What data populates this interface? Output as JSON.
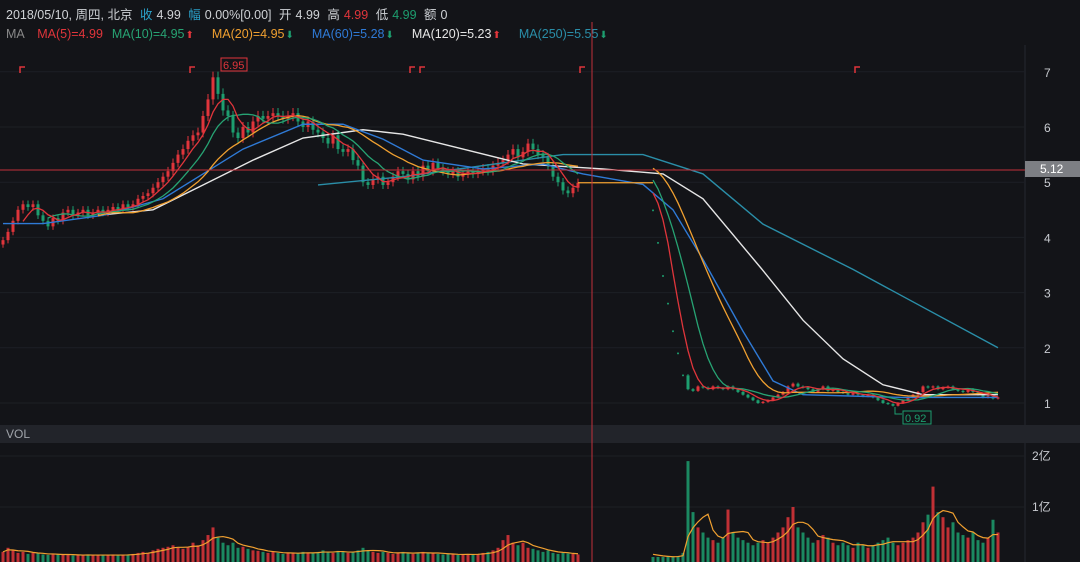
{
  "header": {
    "date": "2018/05/10, 周四, 北京",
    "close_label": "收",
    "close": "4.99",
    "change_label": "幅",
    "change": "0.00%[0.00]",
    "open_label": "开",
    "open": "4.99",
    "high_label": "高",
    "high": "4.99",
    "low_label": "低",
    "low": "4.99",
    "amount_label": "额",
    "amount": "0"
  },
  "ma_legend": {
    "title": "MA",
    "items": [
      {
        "label": "MA(5)=4.99",
        "color": "#e0353b",
        "trend": ""
      },
      {
        "label": "MA(10)=4.95",
        "color": "#27a373",
        "trend": "up"
      },
      {
        "label": "MA(20)=4.95",
        "color": "#f0a030",
        "trend": "down"
      },
      {
        "label": "MA(60)=5.28",
        "color": "#2f7ad6",
        "trend": "down"
      },
      {
        "label": "MA(120)=5.23",
        "color": "#e6e6e6",
        "trend": "up"
      },
      {
        "label": "MA(250)=5.55",
        "color": "#2a8ea8",
        "trend": "down"
      }
    ]
  },
  "colors": {
    "up": "#e0353b",
    "down": "#1d9e6f",
    "background": "#131418",
    "crosshair": "#c0303a"
  },
  "chart_data": [
    {
      "type": "candlestick",
      "title": "",
      "ylim": [
        0.7,
        7.4
      ],
      "yticks": [
        "1",
        "2",
        "3",
        "4",
        "5",
        "6",
        "7"
      ],
      "grid": true,
      "crosshair_value": "5.12",
      "max_label": "6.95",
      "min_label": "0.92",
      "close": [
        3.95,
        4.1,
        4.3,
        4.5,
        4.6,
        4.55,
        4.6,
        4.4,
        4.3,
        4.2,
        4.35,
        4.3,
        4.45,
        4.5,
        4.4,
        4.45,
        4.5,
        4.4,
        4.45,
        4.5,
        4.45,
        4.5,
        4.55,
        4.5,
        4.6,
        4.55,
        4.6,
        4.7,
        4.75,
        4.8,
        4.9,
        5.0,
        5.1,
        5.2,
        5.35,
        5.5,
        5.6,
        5.75,
        5.85,
        5.9,
        6.2,
        6.5,
        6.9,
        6.6,
        6.3,
        6.2,
        5.9,
        5.8,
        6.0,
        5.9,
        6.1,
        6.2,
        6.15,
        6.2,
        6.25,
        6.2,
        6.15,
        6.2,
        6.25,
        6.1,
        6.0,
        6.1,
        5.95,
        5.9,
        5.8,
        5.7,
        5.85,
        5.6,
        5.55,
        5.6,
        5.4,
        5.3,
        5.0,
        4.95,
        5.05,
        5.1,
        4.95,
        5.0,
        5.1,
        5.2,
        5.15,
        5.05,
        5.2,
        5.1,
        5.3,
        5.2,
        5.35,
        5.25,
        5.2,
        5.15,
        5.2,
        5.1,
        5.15,
        5.2,
        5.15,
        5.2,
        5.25,
        5.2,
        5.3,
        5.35,
        5.4,
        5.5,
        5.6,
        5.45,
        5.55,
        5.7,
        5.6,
        5.5,
        5.45,
        5.3,
        5.1,
        5.0,
        4.85,
        4.8,
        4.9,
        4.99,
        null,
        null,
        null,
        null,
        null,
        null,
        null,
        null,
        null,
        null,
        null,
        null,
        null,
        null,
        4.49,
        3.9,
        3.3,
        2.8,
        2.3,
        1.9,
        1.5,
        1.25,
        1.22,
        1.3,
        1.28,
        1.25,
        1.3,
        1.27,
        1.25,
        1.3,
        1.25,
        1.2,
        1.15,
        1.1,
        1.05,
        1.0,
        1.02,
        1.05,
        1.1,
        1.15,
        1.2,
        1.3,
        1.35,
        1.3,
        1.28,
        1.25,
        1.2,
        1.25,
        1.3,
        1.22,
        1.25,
        1.2,
        1.18,
        1.15,
        1.18,
        1.15,
        1.12,
        1.15,
        1.1,
        1.05,
        1.0,
        0.98,
        0.95,
        1.0,
        1.05,
        1.1,
        1.15,
        1.2,
        1.3,
        1.28,
        1.3,
        1.25,
        1.28,
        1.3,
        1.25,
        1.22,
        1.2,
        1.25,
        1.2,
        1.15,
        1.1,
        1.12,
        1.08,
        1.1
      ],
      "ma60": [
        [
          0,
          4.25
        ],
        [
          8,
          4.25
        ],
        [
          20,
          4.4
        ],
        [
          32,
          4.7
        ],
        [
          40,
          5.15
        ],
        [
          48,
          5.6
        ],
        [
          60,
          6.05
        ],
        [
          68,
          6.05
        ],
        [
          76,
          5.78
        ],
        [
          84,
          5.4
        ],
        [
          96,
          5.24
        ],
        [
          108,
          5.33
        ],
        [
          116,
          5.15
        ],
        [
          128,
          4.96
        ],
        [
          134,
          4.5
        ],
        [
          140,
          3.6
        ],
        [
          148,
          2.3
        ],
        [
          154,
          1.4
        ],
        [
          160,
          1.15
        ],
        [
          180,
          1.1
        ],
        [
          199,
          1.1
        ]
      ],
      "ma120": [
        [
          19,
          4.4
        ],
        [
          30,
          4.5
        ],
        [
          40,
          4.95
        ],
        [
          50,
          5.4
        ],
        [
          60,
          5.8
        ],
        [
          72,
          5.95
        ],
        [
          80,
          5.87
        ],
        [
          92,
          5.6
        ],
        [
          104,
          5.33
        ],
        [
          120,
          5.24
        ],
        [
          132,
          5.15
        ],
        [
          140,
          4.7
        ],
        [
          152,
          3.4
        ],
        [
          160,
          2.5
        ],
        [
          168,
          1.8
        ],
        [
          176,
          1.33
        ],
        [
          184,
          1.15
        ],
        [
          199,
          1.15
        ]
      ],
      "ma250": [
        [
          63,
          4.95
        ],
        [
          80,
          5.1
        ],
        [
          100,
          5.35
        ],
        [
          112,
          5.5
        ],
        [
          128,
          5.5
        ],
        [
          140,
          5.15
        ],
        [
          152,
          4.24
        ],
        [
          170,
          3.42
        ],
        [
          199,
          2.0
        ]
      ]
    },
    {
      "type": "bar",
      "title": "VOL",
      "ylim": [
        0,
        2.1
      ],
      "yticks": [
        "1亿",
        "2亿"
      ],
      "values": [
        0.12,
        0.2,
        0.15,
        0.1,
        0.12,
        0.08,
        0.1,
        0.09,
        0.07,
        0.06,
        0.08,
        0.07,
        0.06,
        0.07,
        0.05,
        0.06,
        0.05,
        0.07,
        0.06,
        0.05,
        0.06,
        0.05,
        0.07,
        0.06,
        0.05,
        0.07,
        0.08,
        0.1,
        0.12,
        0.1,
        0.15,
        0.18,
        0.2,
        0.22,
        0.25,
        0.2,
        0.18,
        0.22,
        0.3,
        0.25,
        0.35,
        0.45,
        0.6,
        0.4,
        0.3,
        0.25,
        0.3,
        0.2,
        0.22,
        0.18,
        0.15,
        0.14,
        0.12,
        0.1,
        0.12,
        0.1,
        0.08,
        0.1,
        0.09,
        0.1,
        0.12,
        0.1,
        0.09,
        0.12,
        0.15,
        0.12,
        0.1,
        0.14,
        0.12,
        0.1,
        0.12,
        0.15,
        0.2,
        0.15,
        0.12,
        0.1,
        0.12,
        0.1,
        0.08,
        0.1,
        0.12,
        0.1,
        0.08,
        0.1,
        0.12,
        0.1,
        0.09,
        0.08,
        0.07,
        0.08,
        0.07,
        0.06,
        0.07,
        0.08,
        0.07,
        0.08,
        0.1,
        0.12,
        0.15,
        0.2,
        0.35,
        0.45,
        0.3,
        0.25,
        0.3,
        0.2,
        0.18,
        0.15,
        0.12,
        0.15,
        0.1,
        0.08,
        0.1,
        0.09,
        0.08,
        0.07,
        null,
        null,
        null,
        null,
        null,
        null,
        null,
        null,
        null,
        null,
        null,
        null,
        null,
        null,
        0.02,
        0.02,
        0.02,
        0.03,
        0.03,
        0.04,
        0.1,
        1.9,
        0.9,
        0.6,
        0.5,
        0.4,
        0.35,
        0.3,
        0.4,
        0.95,
        0.5,
        0.4,
        0.35,
        0.3,
        0.25,
        0.3,
        0.35,
        0.3,
        0.4,
        0.5,
        0.6,
        0.8,
        1.0,
        0.6,
        0.5,
        0.4,
        0.3,
        0.35,
        0.45,
        0.4,
        0.3,
        0.25,
        0.3,
        0.25,
        0.2,
        0.3,
        0.25,
        0.2,
        0.25,
        0.3,
        0.35,
        0.4,
        0.3,
        0.25,
        0.3,
        0.35,
        0.4,
        0.5,
        0.7,
        0.85,
        1.4,
        0.9,
        0.8,
        0.6,
        0.7,
        0.5,
        0.45,
        0.4,
        0.5,
        0.35,
        0.3,
        0.4,
        0.75,
        0.5
      ]
    }
  ]
}
